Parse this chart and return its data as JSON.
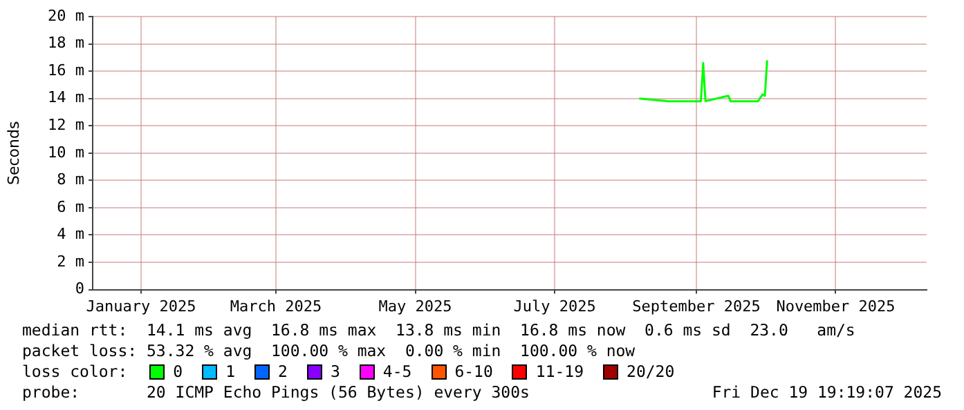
{
  "chart_data": {
    "type": "line",
    "ylabel": "Seconds",
    "legend_title": "loss color:",
    "legend": "bottom",
    "grid": true,
    "marker": "none",
    "line_style": "solid",
    "xlim": [
      "2024-12-19T19:19",
      "2025-12-19T19:19"
    ],
    "xticks": [
      {
        "value": "2025-01-10",
        "label": "January 2025"
      },
      {
        "value": "2025-03-10",
        "label": "March 2025"
      },
      {
        "value": "2025-05-10",
        "label": "May 2025"
      },
      {
        "value": "2025-07-10",
        "label": "July 2025"
      },
      {
        "value": "2025-09-10",
        "label": "September 2025"
      },
      {
        "value": "2025-11-10",
        "label": "November 2025"
      }
    ],
    "ylim": [
      0,
      20
    ],
    "yticks": [
      0,
      {
        "value": 2,
        "label": "2 m"
      },
      {
        "value": 4,
        "label": "4 m"
      },
      {
        "value": 6,
        "label": "6 m"
      },
      {
        "value": 8,
        "label": "8 m"
      },
      {
        "value": 10,
        "label": "10 m"
      },
      {
        "value": 12,
        "label": "12 m"
      },
      {
        "value": 14,
        "label": "14 m"
      },
      {
        "value": 16,
        "label": "16 m"
      },
      {
        "value": 18,
        "label": "18 m"
      },
      {
        "value": 20,
        "label": "20 m"
      }
    ],
    "x": [
      "2025-08-16",
      "2025-08-29",
      "2025-09-12",
      "2025-09-13",
      "2025-09-14",
      "2025-09-24",
      "2025-09-25",
      "2025-10-07",
      "2025-10-09",
      "2025-10-10",
      "2025-10-11"
    ],
    "series": [
      {
        "name": "0",
        "color": "#00ff00",
        "values": [
          14.0,
          13.8,
          13.8,
          16.6,
          13.8,
          14.2,
          13.8,
          13.8,
          14.3,
          14.2,
          16.8
        ]
      },
      {
        "name": "1",
        "color": "#00bbff",
        "values": [
          null,
          null,
          null,
          null,
          null,
          null,
          null,
          null,
          null,
          null,
          null
        ]
      },
      {
        "name": "2",
        "color": "#0066ff",
        "values": [
          null,
          null,
          null,
          null,
          null,
          null,
          null,
          null,
          null,
          null,
          null
        ]
      },
      {
        "name": "3",
        "color": "#8800ff",
        "values": [
          null,
          null,
          null,
          null,
          null,
          null,
          null,
          null,
          null,
          null,
          null
        ]
      },
      {
        "name": "4-5",
        "color": "#ff00ff",
        "values": [
          null,
          null,
          null,
          null,
          null,
          null,
          null,
          null,
          null,
          null,
          null
        ]
      },
      {
        "name": "6-10",
        "color": "#ff5500",
        "values": [
          null,
          null,
          null,
          null,
          null,
          null,
          null,
          null,
          null,
          null,
          null
        ]
      },
      {
        "name": "11-19",
        "color": "#ff0000",
        "values": [
          null,
          null,
          null,
          null,
          null,
          null,
          null,
          null,
          null,
          null,
          null
        ]
      },
      {
        "name": "20/20",
        "color": "#a10000",
        "values": [
          null,
          null,
          null,
          null,
          null,
          null,
          null,
          null,
          null,
          null,
          null
        ]
      }
    ],
    "annotations": [
      "median rtt:  14.1 ms avg  16.8 ms max  13.8 ms min  16.8 ms now  0.6 ms sd  23.0   am/s",
      "packet loss: 53.32 % avg  100.00 % max  0.00 % min  100.00 % now",
      "probe:       20 ICMP Echo Pings (56 Bytes) every 300s",
      "Fri Dec 19 19:19:07 2025"
    ]
  }
}
